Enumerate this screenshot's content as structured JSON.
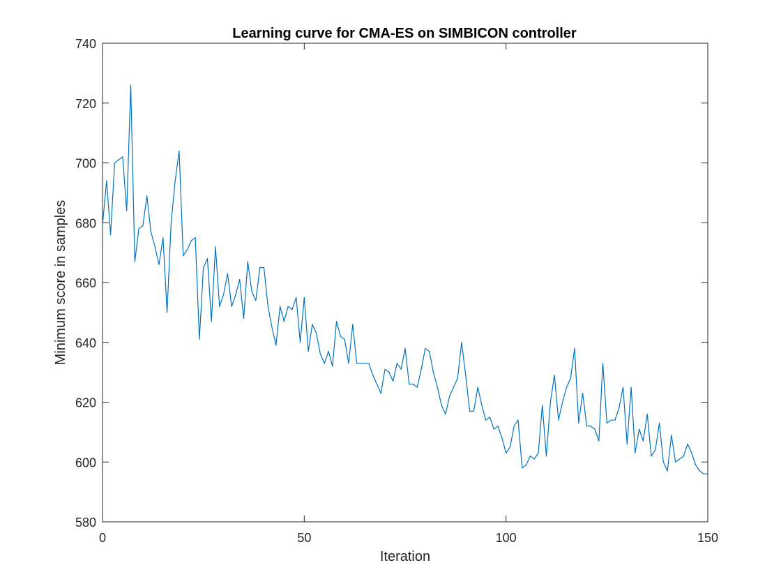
{
  "chart_data": {
    "type": "line",
    "title": "Learning curve for CMA-ES on SIMBICON controller",
    "xlabel": "Iteration",
    "ylabel": "Minimum score in samples",
    "xlim": [
      0,
      150
    ],
    "ylim": [
      580,
      740
    ],
    "xticks": [
      0,
      50,
      100,
      150
    ],
    "yticks": [
      580,
      600,
      620,
      640,
      660,
      680,
      700,
      720,
      740
    ],
    "grid": false,
    "series": [
      {
        "color": "#0072BD",
        "x": [
          0,
          1,
          2,
          3,
          4,
          5,
          6,
          7,
          8,
          9,
          10,
          11,
          12,
          13,
          14,
          15,
          16,
          17,
          18,
          19,
          20,
          21,
          22,
          23,
          24,
          25,
          26,
          27,
          28,
          29,
          30,
          31,
          32,
          33,
          34,
          35,
          36,
          37,
          38,
          39,
          40,
          41,
          42,
          43,
          44,
          45,
          46,
          47,
          48,
          49,
          50,
          51,
          52,
          53,
          54,
          55,
          56,
          57,
          58,
          59,
          60,
          61,
          62,
          63,
          64,
          65,
          66,
          67,
          68,
          69,
          70,
          71,
          72,
          73,
          74,
          75,
          76,
          77,
          78,
          79,
          80,
          81,
          82,
          83,
          84,
          85,
          86,
          87,
          88,
          89,
          90,
          91,
          92,
          93,
          94,
          95,
          96,
          97,
          98,
          99,
          100,
          101,
          102,
          103,
          104,
          105,
          106,
          107,
          108,
          109,
          110,
          111,
          112,
          113,
          114,
          115,
          116,
          117,
          118,
          119,
          120,
          121,
          122,
          123,
          124,
          125,
          126,
          127,
          128,
          129,
          130,
          131,
          132,
          133,
          134,
          135,
          136,
          137,
          138,
          139,
          140,
          141,
          142,
          143,
          144,
          145,
          146,
          147,
          148,
          149,
          150
        ],
        "y": [
          679,
          694,
          676,
          700,
          701,
          702,
          684,
          726,
          667,
          678,
          679,
          689,
          677,
          672,
          666,
          675,
          650,
          680,
          694,
          704,
          669,
          671,
          674,
          675,
          641,
          665,
          668,
          647,
          672,
          652,
          656,
          663,
          652,
          656,
          661,
          648,
          667,
          657,
          654,
          665,
          665,
          652,
          645,
          639,
          652,
          647,
          652,
          651,
          655,
          640,
          655,
          637,
          646,
          643,
          636,
          633,
          637,
          632,
          647,
          642,
          641,
          633,
          646,
          633,
          633,
          633,
          633,
          629,
          626,
          623,
          631,
          630,
          627,
          633,
          631,
          638,
          626,
          626,
          625,
          631,
          638,
          637,
          630,
          625,
          619,
          616,
          622,
          625,
          628,
          640,
          629,
          617,
          617,
          625,
          619,
          614,
          615,
          611,
          612,
          608,
          603,
          605,
          612,
          614,
          598,
          599,
          602,
          601,
          603,
          619,
          602,
          620,
          629,
          614,
          620,
          625,
          628,
          638,
          613,
          623,
          612,
          612,
          611,
          607,
          633,
          613,
          614,
          614,
          618,
          625,
          606,
          625,
          603,
          611,
          607,
          616,
          602,
          604,
          613,
          600,
          597,
          609,
          600,
          601,
          602,
          606,
          603,
          599,
          597,
          596,
          596
        ]
      }
    ]
  }
}
